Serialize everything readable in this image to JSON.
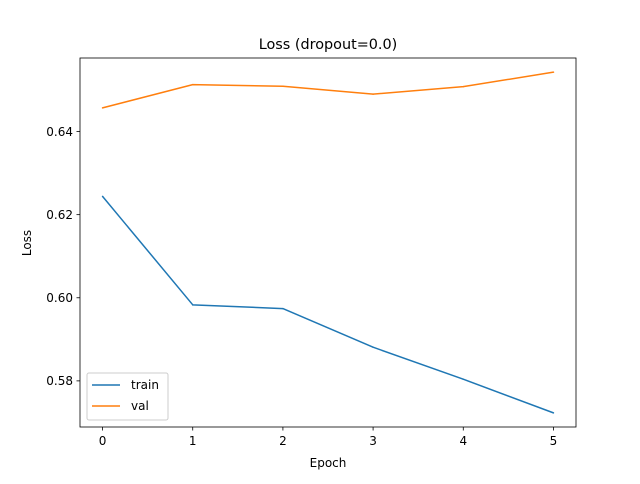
{
  "chart_data": {
    "type": "line",
    "title": "Loss (dropout=0.0)",
    "xlabel": "Epoch",
    "ylabel": "Loss",
    "x": [
      0,
      1,
      2,
      3,
      4,
      5
    ],
    "xticks": [
      0,
      1,
      2,
      3,
      4,
      5
    ],
    "yticks": [
      0.58,
      0.6,
      0.62,
      0.64
    ],
    "ytick_labels": [
      "0.58",
      "0.60",
      "0.62",
      "0.64"
    ],
    "xlim": [
      -0.25,
      5.25
    ],
    "ylim": [
      0.5689,
      0.6577
    ],
    "grid": false,
    "legend_position": "lower-left",
    "series": [
      {
        "name": "train",
        "color": "#1f77b4",
        "values": [
          0.6244,
          0.5983,
          0.5974,
          0.5881,
          0.5804,
          0.5723
        ]
      },
      {
        "name": "val",
        "color": "#ff7f0e",
        "values": [
          0.6457,
          0.6513,
          0.6509,
          0.649,
          0.6508,
          0.6543
        ]
      }
    ]
  }
}
